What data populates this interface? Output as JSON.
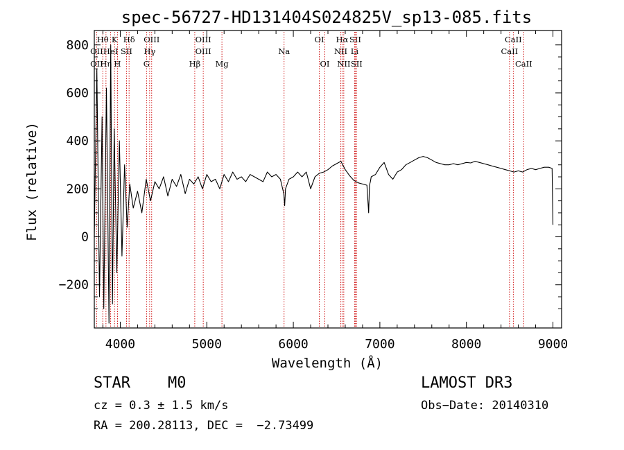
{
  "chart_data": {
    "type": "line",
    "title": "spec-56727-HD131404S024825V_sp13-085.fits",
    "xlabel": "Wavelength (Å)",
    "ylabel": "Flux (relative)",
    "xlim": [
      3700,
      9100
    ],
    "ylim": [
      -380,
      860
    ],
    "xticks": [
      4000,
      5000,
      6000,
      7000,
      8000,
      9000
    ],
    "xtick_labels": [
      "4000",
      "5000",
      "6000",
      "7000",
      "8000",
      "9000"
    ],
    "yticks": [
      -200,
      0,
      200,
      400,
      600,
      800
    ],
    "ytick_labels": [
      "−200",
      "0",
      "200",
      "400",
      "600",
      "800"
    ],
    "series": [
      {
        "name": "flux",
        "x": [
          3700,
          3730,
          3760,
          3790,
          3810,
          3840,
          3870,
          3890,
          3910,
          3930,
          3960,
          3990,
          4020,
          4050,
          4080,
          4110,
          4150,
          4200,
          4250,
          4300,
          4350,
          4400,
          4450,
          4500,
          4550,
          4600,
          4650,
          4700,
          4750,
          4800,
          4850,
          4900,
          4950,
          5000,
          5050,
          5100,
          5150,
          5200,
          5250,
          5300,
          5350,
          5400,
          5450,
          5500,
          5550,
          5600,
          5650,
          5700,
          5750,
          5800,
          5850,
          5890,
          5900,
          5910,
          5950,
          6000,
          6050,
          6100,
          6150,
          6200,
          6250,
          6300,
          6350,
          6400,
          6450,
          6500,
          6550,
          6600,
          6650,
          6700,
          6750,
          6800,
          6850,
          6870,
          6880,
          6890,
          6900,
          6950,
          7000,
          7050,
          7100,
          7150,
          7200,
          7250,
          7300,
          7350,
          7400,
          7450,
          7500,
          7550,
          7600,
          7650,
          7700,
          7750,
          7800,
          7850,
          7900,
          7950,
          8000,
          8050,
          8100,
          8150,
          8200,
          8250,
          8300,
          8350,
          8400,
          8450,
          8500,
          8550,
          8600,
          8650,
          8700,
          8750,
          8800,
          8850,
          8900,
          8950,
          8990,
          9000
        ],
        "values": [
          0,
          700,
          -250,
          500,
          -300,
          620,
          -360,
          800,
          -280,
          450,
          -150,
          400,
          -80,
          300,
          40,
          220,
          120,
          190,
          100,
          240,
          150,
          230,
          200,
          250,
          170,
          240,
          210,
          260,
          180,
          240,
          220,
          250,
          200,
          260,
          230,
          240,
          200,
          260,
          230,
          270,
          240,
          250,
          230,
          260,
          250,
          240,
          230,
          270,
          250,
          260,
          240,
          180,
          130,
          200,
          240,
          250,
          270,
          250,
          270,
          200,
          250,
          265,
          270,
          280,
          295,
          305,
          315,
          280,
          255,
          235,
          225,
          220,
          215,
          100,
          215,
          230,
          250,
          260,
          290,
          310,
          260,
          240,
          270,
          280,
          300,
          310,
          320,
          330,
          335,
          330,
          320,
          310,
          305,
          300,
          300,
          305,
          300,
          305,
          310,
          308,
          315,
          310,
          305,
          300,
          295,
          290,
          285,
          280,
          275,
          270,
          275,
          270,
          280,
          285,
          280,
          285,
          290,
          290,
          285,
          50
        ]
      }
    ],
    "line_ids": [
      {
        "label": "Hθ",
        "wave": 3798,
        "row": 1
      },
      {
        "label": "K",
        "wave": 3934,
        "row": 1
      },
      {
        "label": "Hδ",
        "wave": 4102,
        "row": 1
      },
      {
        "label": "OIII",
        "wave": 4363,
        "row": 1
      },
      {
        "label": "OIII",
        "wave": 4959,
        "row": 1
      },
      {
        "label": "OI",
        "wave": 6300,
        "row": 1
      },
      {
        "label": "Hα",
        "wave": 6563,
        "row": 1
      },
      {
        "label": "SII",
        "wave": 6716,
        "row": 1
      },
      {
        "label": "CaII",
        "wave": 8542,
        "row": 1
      },
      {
        "label": "OII",
        "wave": 3727,
        "row": 2
      },
      {
        "label": "HeI",
        "wave": 3889,
        "row": 2
      },
      {
        "label": "SII",
        "wave": 4072,
        "row": 2
      },
      {
        "label": "Hγ",
        "wave": 4340,
        "row": 2
      },
      {
        "label": "OIII",
        "wave": 4959,
        "row": 2
      },
      {
        "label": "Na",
        "wave": 5893,
        "row": 2
      },
      {
        "label": "NII",
        "wave": 6548,
        "row": 2
      },
      {
        "label": "Li",
        "wave": 6708,
        "row": 2
      },
      {
        "label": "CaII",
        "wave": 8498,
        "row": 2
      },
      {
        "label": "OII",
        "wave": 3727,
        "row": 3
      },
      {
        "label": "Hη",
        "wave": 3835,
        "row": 3
      },
      {
        "label": "H",
        "wave": 3968,
        "row": 3
      },
      {
        "label": "G",
        "wave": 4304,
        "row": 3
      },
      {
        "label": "Hβ",
        "wave": 4861,
        "row": 3
      },
      {
        "label": "Mg",
        "wave": 5175,
        "row": 3
      },
      {
        "label": "OI",
        "wave": 6364,
        "row": 3
      },
      {
        "label": "NII",
        "wave": 6583,
        "row": 3
      },
      {
        "label": "SII",
        "wave": 6731,
        "row": 3
      },
      {
        "label": "CaII",
        "wave": 8662,
        "row": 3
      }
    ],
    "line_id_color": "#cc0000",
    "line_color": "#000000"
  },
  "info": {
    "class": "STAR",
    "subclass": "M0",
    "redshift": "cz = 0.3 ± 1.5 km/s",
    "coords": "RA = 200.28113, DEC =  −2.73499",
    "survey": "LAMOST DR3",
    "obs_date": "Obs−Date: 20140310"
  }
}
